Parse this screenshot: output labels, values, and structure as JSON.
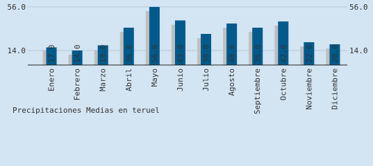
{
  "chart_data": {
    "type": "bar",
    "title": "Precipitaciones Medias en teruel",
    "categories": [
      "Enero",
      "Febrero",
      "Marzo",
      "Abril",
      "Mayo",
      "Junio",
      "Julio",
      "Agosto",
      "Septiembre",
      "Octubre",
      "Noviembre",
      "Diciembre"
    ],
    "series": [
      {
        "color": "#bfbfbf",
        "values": [
          14,
          10,
          14.5,
          32,
          52,
          39,
          26,
          36,
          32,
          38,
          18,
          16
        ]
      },
      {
        "color": "#005a8c",
        "values": [
          17,
          14,
          19,
          36,
          56,
          43,
          30,
          40,
          36,
          42,
          22,
          20
        ],
        "value_labels": [
          "17.0",
          "14.0",
          "19.0",
          "36.0",
          "56.0",
          "43.0",
          "30.0",
          "40.0",
          "36.0",
          "42.0",
          "22.0",
          "20.0"
        ]
      }
    ],
    "ylim": [
      0,
      62.7
    ],
    "yticks": [
      {
        "value": 14,
        "label": "14.0"
      },
      {
        "value": 56,
        "label": "56.0"
      }
    ],
    "grid": true
  }
}
